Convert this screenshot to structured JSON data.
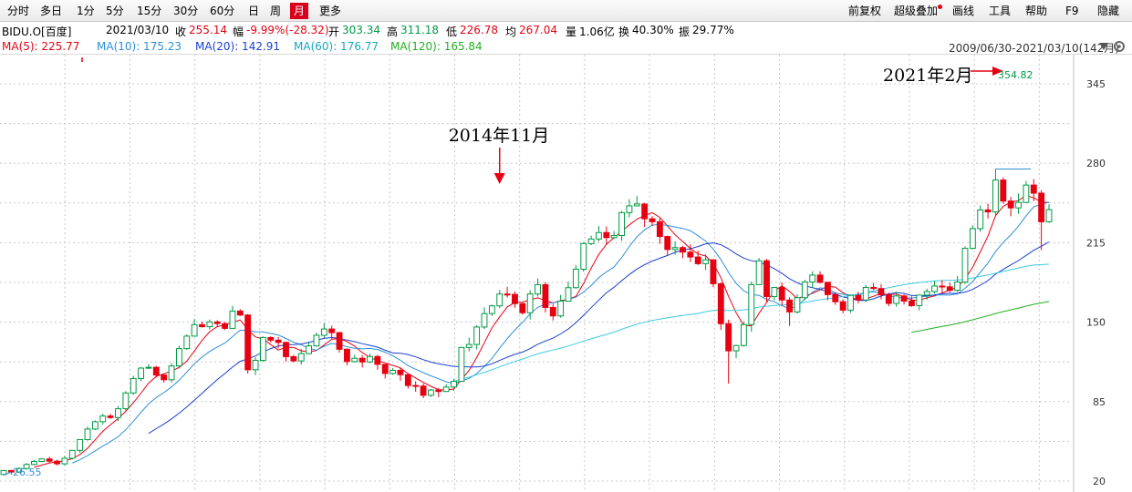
{
  "toolbar": {
    "left_items": [
      "分时",
      "多日",
      "1分",
      "5分",
      "15分",
      "30分",
      "60分",
      "日",
      "周",
      "月",
      "更多"
    ],
    "active_index": 9,
    "right_items": [
      "前复权",
      "超级叠加",
      "画线",
      "工具",
      "帮助",
      "F9",
      "隐藏"
    ]
  },
  "quote": {
    "symbol": "BIDU.O[百度]",
    "date": "2021/03/10",
    "close_label": "收",
    "close": "255.14",
    "change_label": "幅",
    "change": "-9.99%(-28.32)",
    "open_label": "开",
    "open": "303.34",
    "high_label": "高",
    "high": "311.18",
    "low_label": "低",
    "low": "226.78",
    "avg_label": "均",
    "avg": "267.04",
    "volume_label": "量",
    "volume": "1.06亿",
    "turnover_label": "换",
    "turnover": "40.30%",
    "amplitude_label": "振",
    "amplitude": "29.77%"
  },
  "ma_legend": {
    "ma5": "MA(5): 225.77",
    "ma10": "MA(10): 175.23",
    "ma20": "MA(20): 142.91",
    "ma60": "MA(60): 176.77",
    "ma120": "MA(120): 165.84",
    "range": "2009/06/30-2021/03/10(142月)"
  },
  "colors": {
    "up": "#009a44",
    "down": "#e60012",
    "ma5": "#e60012",
    "ma10": "#2e8fd6",
    "ma20": "#1a3fd1",
    "ma60": "#3ccbe0",
    "ma120": "#22b022",
    "grid": "#c8c8c8"
  },
  "chart_data": {
    "type": "candlestick",
    "period": "monthly",
    "ylim": [
      20,
      360
    ],
    "y_ticks": [
      20,
      85,
      150,
      215,
      280,
      345
    ],
    "annotations": [
      {
        "text": "2014年11月"
      },
      {
        "text": "2021年2月"
      },
      {
        "text": "354.82"
      },
      {
        "text": "26.55"
      }
    ],
    "candles": [
      [
        25.42,
        28.63,
        29.09,
        24.76
      ],
      [
        28.63,
        27.37,
        29.23,
        25.32
      ],
      [
        27.37,
        30.32,
        31.25,
        26.69
      ],
      [
        30.32,
        33.61,
        34.74,
        29.13
      ],
      [
        33.61,
        36.02,
        37.36,
        32.91
      ],
      [
        36.02,
        38.08,
        38.59,
        35.39
      ],
      [
        38.08,
        36.27,
        39.92,
        34.57
      ],
      [
        36.27,
        34.11,
        37.46,
        32.7
      ],
      [
        34.11,
        38.64,
        40.46,
        32.9
      ],
      [
        38.64,
        45.06,
        45.44,
        37.56
      ],
      [
        45.06,
        53.96,
        54.25,
        43.05
      ],
      [
        53.96,
        62.58,
        64.58,
        53.13
      ],
      [
        62.58,
        68.55,
        69.65,
        61.67
      ],
      [
        68.55,
        73.24,
        75.08,
        66.36
      ],
      [
        73.24,
        71.97,
        75.0,
        70.88
      ],
      [
        71.97,
        79.19,
        81.45,
        69.15
      ],
      [
        79.19,
        92.1,
        93.56,
        77.68
      ],
      [
        92.1,
        103.9,
        106.17,
        90.57
      ],
      [
        103.9,
        112.41,
        113.35,
        101.67
      ],
      [
        112.41,
        113.08,
        115.6,
        111.74
      ],
      [
        113.08,
        106.75,
        114.05,
        104.77
      ],
      [
        106.75,
        102.9,
        107.5,
        100.46
      ],
      [
        102.9,
        114.17,
        116.53,
        100.81
      ],
      [
        114.17,
        128.33,
        130.87,
        112.02
      ],
      [
        128.33,
        138.59,
        139.96,
        127.35
      ],
      [
        138.59,
        147.95,
        152.46,
        138.23
      ],
      [
        147.95,
        146.3,
        150.54,
        145.52
      ],
      [
        146.3,
        150.22,
        152.2,
        144.08
      ],
      [
        150.22,
        148.84,
        151.57,
        146.16
      ],
      [
        148.84,
        144.92,
        150.2,
        143.63
      ],
      [
        144.92,
        159.08,
        163.31,
        144.61
      ],
      [
        159.08,
        155.84,
        160.66,
        154.99
      ],
      [
        155.84,
        111.06,
        156.71,
        107.95
      ],
      [
        111.06,
        118.71,
        121.2,
        106.79
      ],
      [
        118.71,
        137.48,
        138.28,
        117.44
      ],
      [
        137.48,
        135.28,
        138.31,
        133.4
      ],
      [
        135.28,
        133.45,
        137.88,
        128.62
      ],
      [
        133.45,
        121.79,
        134.14,
        117.71
      ],
      [
        121.79,
        118.29,
        123.2,
        117.15
      ],
      [
        118.29,
        124.27,
        128.02,
        115.26
      ],
      [
        124.27,
        130.55,
        133.96,
        124.01
      ],
      [
        130.55,
        139.27,
        141.48,
        129.92
      ],
      [
        139.27,
        144.42,
        149.21,
        137.14
      ],
      [
        144.42,
        141.44,
        147.09,
        136.49
      ],
      [
        141.44,
        127.83,
        142.03,
        125.11
      ],
      [
        127.83,
        117.79,
        128.6,
        114.61
      ],
      [
        117.79,
        120.48,
        123.37,
        117.1
      ],
      [
        120.48,
        117.46,
        122.94,
        112.97
      ],
      [
        117.46,
        121.92,
        124.27,
        116.45
      ],
      [
        121.92,
        115.49,
        123.18,
        111.03
      ],
      [
        115.49,
        108.03,
        115.74,
        103.93
      ],
      [
        108.03,
        110.58,
        112.43,
        106.92
      ],
      [
        110.58,
        107.05,
        112.82,
        102.08
      ],
      [
        107.05,
        98.18,
        108.04,
        95.71
      ],
      [
        98.18,
        97.72,
        101.68,
        93.07
      ],
      [
        97.72,
        90.19,
        99.86,
        87.83
      ],
      [
        90.19,
        94.49,
        95.27,
        88.88
      ],
      [
        94.49,
        93.29,
        96.34,
        88.71
      ],
      [
        93.29,
        96.91,
        99.27,
        92.95
      ],
      [
        96.91,
        101.53,
        103.57,
        93.91
      ],
      [
        101.53,
        129.31,
        129.83,
        101.15
      ],
      [
        129.31,
        131.76,
        137.42,
        126.12
      ],
      [
        131.76,
        146.03,
        147.57,
        127.7
      ],
      [
        146.03,
        157.06,
        162.06,
        144.28
      ],
      [
        157.06,
        163.34,
        164.28,
        154.99
      ],
      [
        163.34,
        173.0,
        176.23,
        161.52
      ],
      [
        173.0,
        172.73,
        178.91,
        170.2
      ],
      [
        172.73,
        165.17,
        175.15,
        161.78
      ],
      [
        165.17,
        157.69,
        165.89,
        156.1
      ],
      [
        157.69,
        173.05,
        176.1,
        152.2
      ],
      [
        173.05,
        180.69,
        185.78,
        170.97
      ],
      [
        180.69,
        162.04,
        182.8,
        157.91
      ],
      [
        162.04,
        155.12,
        165.01,
        151.44
      ],
      [
        155.12,
        167.22,
        172.29,
        153.64
      ],
      [
        167.22,
        178.21,
        183.35,
        166.97
      ],
      [
        178.21,
        193.34,
        196.73,
        177.38
      ],
      [
        193.34,
        214.3,
        215.44,
        191.34
      ],
      [
        214.3,
        218.05,
        220.8,
        212.96
      ],
      [
        218.05,
        223.33,
        228.65,
        215.92
      ],
      [
        223.33,
        219.17,
        228.33,
        213.24
      ],
      [
        219.17,
        220.88,
        224.56,
        218.06
      ],
      [
        220.88,
        239.64,
        240.97,
        216.58
      ],
      [
        239.64,
        245.14,
        250.62,
        235.81
      ],
      [
        245.14,
        246.66,
        253.19,
        245.11
      ],
      [
        246.66,
        234.56,
        247.5,
        227.9
      ],
      [
        234.56,
        232.16,
        236.7,
        228.81
      ],
      [
        232.16,
        220.08,
        234.97,
        214.05
      ],
      [
        220.08,
        209.46,
        220.86,
        204.59
      ],
      [
        209.46,
        211.02,
        216.05,
        205.32
      ],
      [
        211.02,
        207.31,
        212.51,
        202.32
      ],
      [
        207.31,
        203.31,
        213.6,
        199.35
      ],
      [
        203.31,
        197.88,
        208.59,
        196.75
      ],
      [
        197.88,
        201.03,
        205.69,
        192.66
      ],
      [
        201.03,
        181.43,
        201.45,
        178.65
      ],
      [
        181.43,
        148.76,
        182.55,
        143.74
      ],
      [
        148.76,
        126.53,
        152.06,
        99.82
      ],
      [
        126.53,
        130.91,
        131.52,
        120.56
      ],
      [
        130.91,
        148.05,
        150.63,
        130.01
      ],
      [
        148.05,
        180.73,
        183.16,
        142.11
      ],
      [
        180.73,
        200.23,
        202.49,
        180.7
      ],
      [
        200.23,
        170.97,
        201.67,
        166.43
      ],
      [
        170.97,
        178.36,
        178.82,
        167.85
      ],
      [
        178.36,
        168.13,
        182.36,
        163.6
      ],
      [
        168.13,
        158.38,
        170.26,
        147.03
      ],
      [
        158.38,
        170.01,
        172.8,
        157.01
      ],
      [
        170.01,
        182.89,
        184.76,
        167.8
      ],
      [
        182.89,
        188.53,
        191.54,
        178.11
      ],
      [
        188.53,
        182.6,
        191.66,
        181.66
      ],
      [
        182.6,
        172.56,
        183.06,
        167.98
      ],
      [
        172.56,
        166.74,
        174.52,
        164.15
      ],
      [
        166.74,
        159.86,
        168.78,
        157.27
      ],
      [
        159.86,
        171.87,
        172.23,
        157.56
      ],
      [
        171.87,
        168.13,
        174.87,
        165.42
      ],
      [
        168.13,
        178.43,
        180.52,
        166.58
      ],
      [
        178.43,
        177.51,
        182.1,
        176.36
      ],
      [
        177.51,
        172.37,
        181.04,
        168.69
      ],
      [
        172.37,
        165.33,
        174.06,
        163.01
      ],
      [
        165.33,
        171.45,
        174.89,
        162.54
      ],
      [
        171.45,
        167.23,
        172.76,
        164.39
      ],
      [
        167.23,
        163.54,
        171.09,
        162.5
      ],
      [
        163.54,
        172.16,
        172.37,
        159.6
      ],
      [
        172.16,
        175.05,
        177.46,
        168.12
      ],
      [
        175.05,
        179.53,
        183.6,
        173.45
      ],
      [
        179.53,
        178.88,
        184.42,
        174.15
      ],
      [
        178.88,
        176.1,
        182.31,
        174.25
      ],
      [
        176.1,
        182.8,
        187.73,
        174.69
      ],
      [
        182.8,
        210.38,
        212.09,
        181.3
      ],
      [
        210.38,
        226.51,
        229.29,
        209.53
      ],
      [
        226.51,
        241.82,
        245.55,
        224.06
      ],
      [
        241.82,
        240.22,
        246.98,
        234.83
      ],
      [
        240.22,
        266.28,
        275.31,
        236.57
      ],
      [
        266.28,
        249.09,
        268.51,
        246.88
      ],
      [
        249.09,
        243.49,
        252.55,
        236.62
      ],
      [
        243.49,
        247.96,
        255.25,
        238.67
      ],
      [
        247.96,
        262.16,
        265.53,
        247.52
      ],
      [
        262.16,
        255.55,
        267.07,
        249.02
      ],
      [
        255.55,
        232.12,
        258.05,
        208.98
      ],
      [
        232.12,
        242.04,
        246.4,
        231.21
      ]
    ]
  }
}
